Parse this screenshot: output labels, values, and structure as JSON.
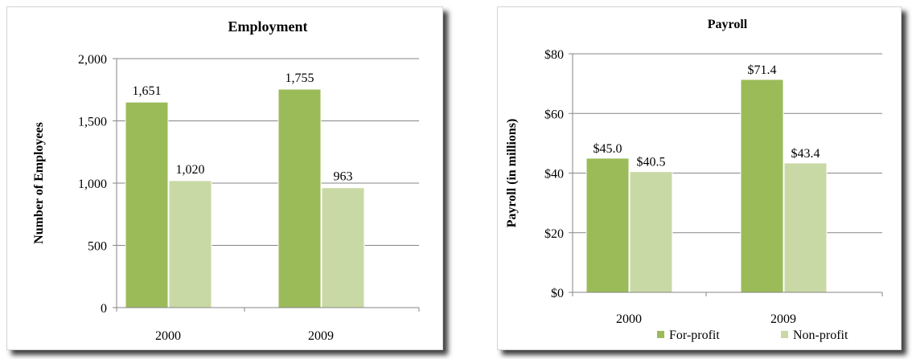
{
  "colors": {
    "for_profit": "#9bbb59",
    "non_profit": "#c9d9a5",
    "gridline": "#868686",
    "axis": "#868686"
  },
  "legend": [
    {
      "label": "For-profit",
      "color": "#9bbb59"
    },
    {
      "label": "Non-profit",
      "color": "#c9d9a5"
    }
  ],
  "chart_data": [
    {
      "type": "bar",
      "title": "Employment",
      "ylabel": "Number of Employees",
      "xlabel": "",
      "categories": [
        "2000",
        "2009"
      ],
      "ylim": [
        0,
        2000
      ],
      "yticks": [
        0,
        500,
        1000,
        1500,
        2000
      ],
      "ytick_labels": [
        "0",
        "500",
        "1,000",
        "1,500",
        "2,000"
      ],
      "grid": true,
      "legend": "none",
      "series": [
        {
          "values": [
            1651,
            1755
          ],
          "labels": [
            "1,651",
            "1,755"
          ],
          "color": "#9bbb59"
        },
        {
          "values": [
            1020,
            963
          ],
          "labels": [
            "1,020",
            "963"
          ],
          "color": "#c9d9a5"
        }
      ]
    },
    {
      "type": "bar",
      "title": "Payroll",
      "ylabel": "Payroll (in millions)",
      "xlabel": "",
      "categories": [
        "2000",
        "2009"
      ],
      "ylim": [
        0,
        80
      ],
      "yticks": [
        0,
        20,
        40,
        60,
        80
      ],
      "ytick_labels": [
        "$0",
        "$20",
        "$40",
        "$60",
        "$80"
      ],
      "grid": true,
      "legend": "bottom-right",
      "series": [
        {
          "name": "For-profit",
          "values": [
            45.0,
            71.4
          ],
          "labels": [
            "$45.0",
            "$71.4"
          ],
          "color": "#9bbb59"
        },
        {
          "name": "Non-profit",
          "values": [
            40.5,
            43.4
          ],
          "labels": [
            "$40.5",
            "$43.4"
          ],
          "color": "#c9d9a5"
        }
      ]
    }
  ]
}
